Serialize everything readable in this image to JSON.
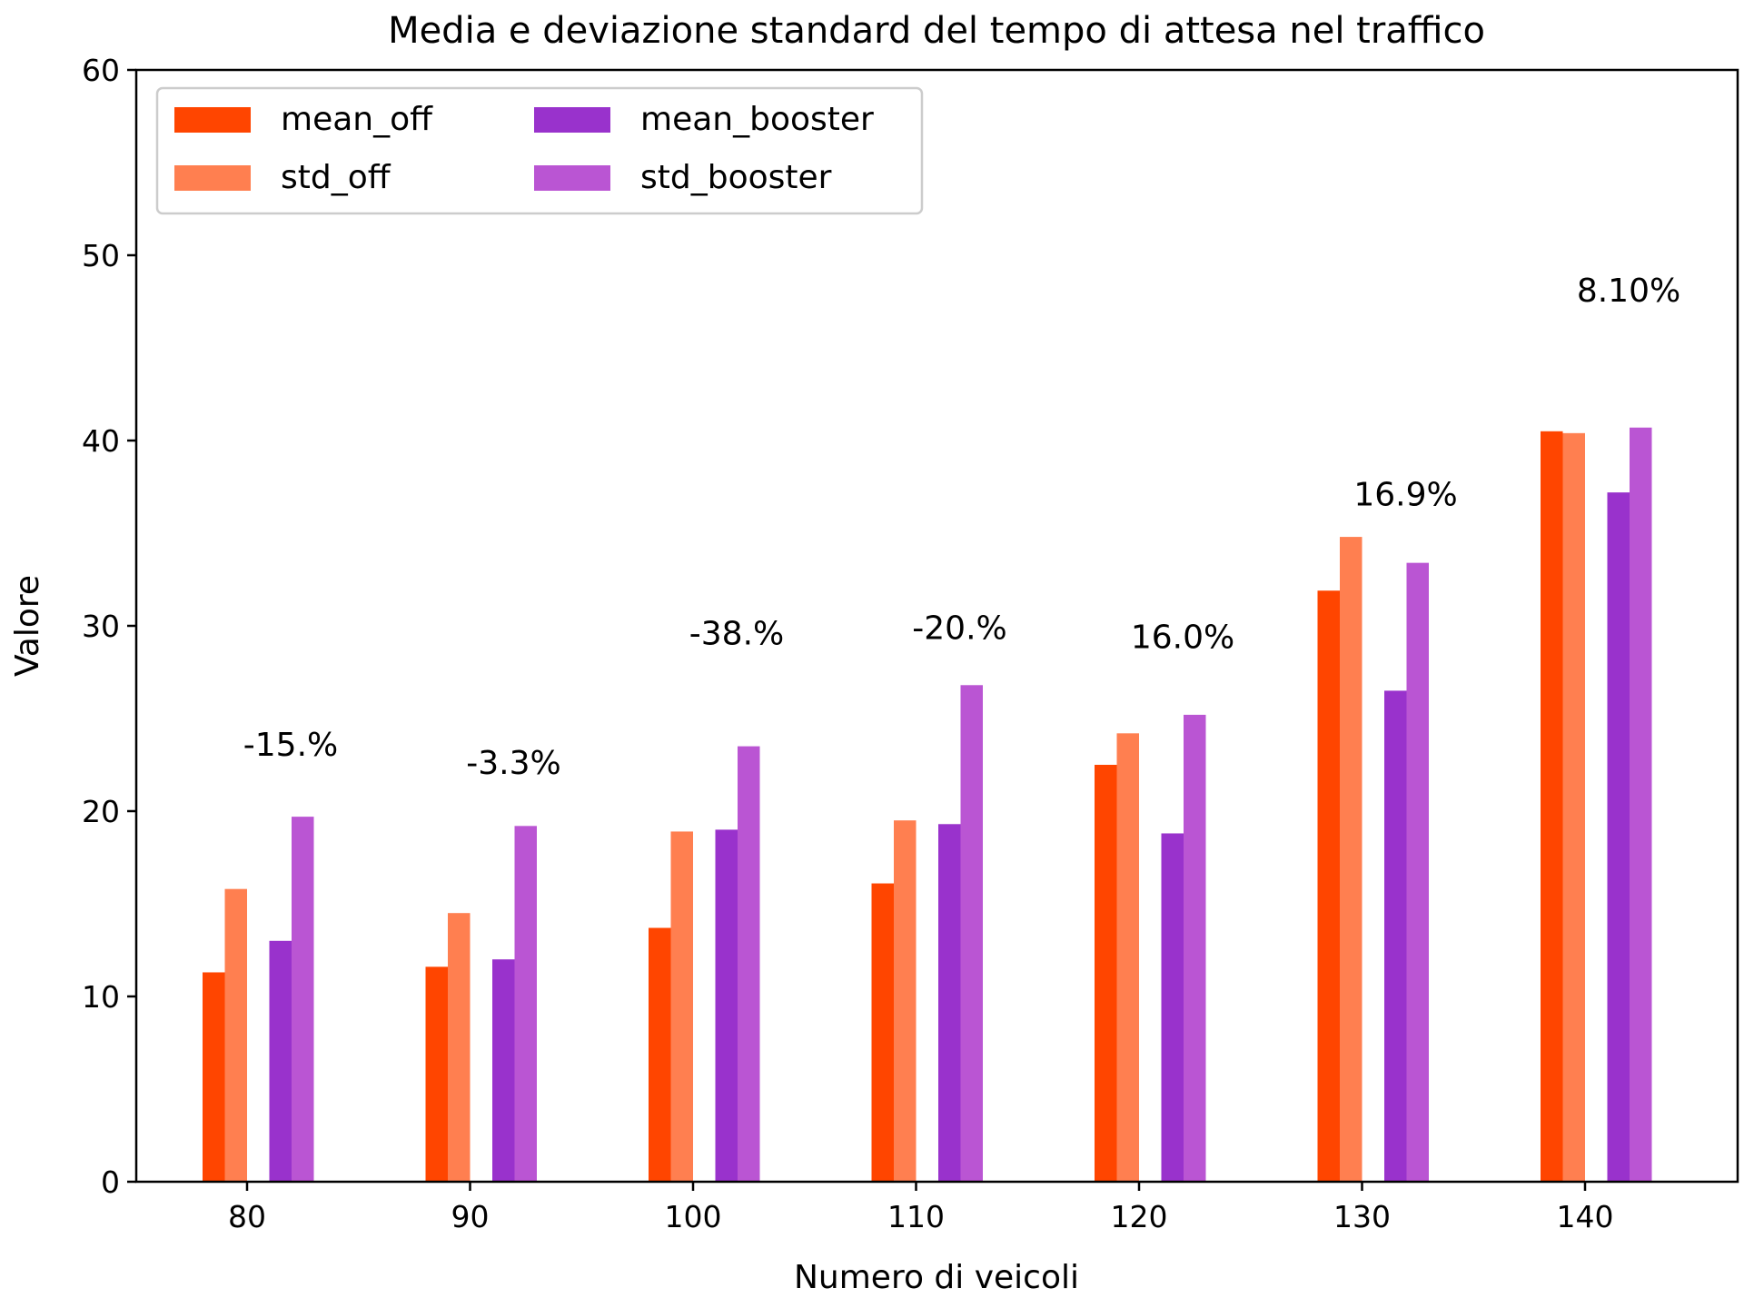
{
  "chart_data": {
    "type": "bar",
    "title": "Media e deviazione standard del tempo di attesa nel traffico",
    "xlabel": "Numero di veicoli",
    "ylabel": "Valore",
    "ylim": [
      0,
      60
    ],
    "yticks": [
      0,
      10,
      20,
      30,
      40,
      50,
      60
    ],
    "categories": [
      "80",
      "90",
      "100",
      "110",
      "120",
      "130",
      "140"
    ],
    "series": [
      {
        "name": "mean_off",
        "color": "#ff4500",
        "values": [
          11.3,
          11.6,
          13.7,
          16.1,
          22.5,
          31.9,
          40.5
        ]
      },
      {
        "name": "std_off",
        "color": "#ff7f50",
        "values": [
          15.8,
          14.5,
          18.9,
          19.5,
          24.2,
          34.8,
          40.4
        ]
      },
      {
        "name": "mean_booster",
        "color": "#9932cc",
        "values": [
          13.0,
          12.0,
          19.0,
          19.3,
          18.8,
          26.5,
          37.2
        ]
      },
      {
        "name": "std_booster",
        "color": "#ba55d3",
        "values": [
          19.7,
          19.2,
          23.5,
          26.8,
          25.2,
          33.4,
          40.7
        ]
      }
    ],
    "annotations": [
      {
        "category": "80",
        "text": "-15.%",
        "y": 23.0
      },
      {
        "category": "90",
        "text": "-3.3%",
        "y": 22.0
      },
      {
        "category": "100",
        "text": "-38.%",
        "y": 29.0
      },
      {
        "category": "110",
        "text": "-20.%",
        "y": 29.3
      },
      {
        "category": "120",
        "text": "16.0%",
        "y": 28.8
      },
      {
        "category": "130",
        "text": "16.9%",
        "y": 36.5
      },
      {
        "category": "140",
        "text": "8.10%",
        "y": 47.5
      }
    ],
    "legend": {
      "position": "top-left",
      "columns": 2
    },
    "grid": false
  }
}
